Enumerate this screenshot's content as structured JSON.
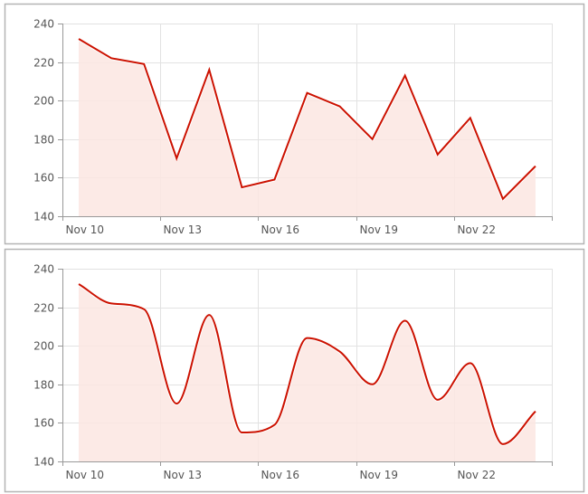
{
  "colors": {
    "line": "#cc1100",
    "fill": "#fbe6e2",
    "grid": "#e2e2e2",
    "axis": "#999999",
    "panel_border": "#b4b4b4"
  },
  "chart_data": [
    {
      "type": "area",
      "interpolation": "linear",
      "x": [
        "Nov 10",
        "Nov 11",
        "Nov 12",
        "Nov 13",
        "Nov 14",
        "Nov 15",
        "Nov 16",
        "Nov 17",
        "Nov 18",
        "Nov 19",
        "Nov 20",
        "Nov 21",
        "Nov 22",
        "Nov 23",
        "Nov 24"
      ],
      "values": [
        232,
        222,
        219,
        170,
        216,
        155,
        159,
        204,
        197,
        180,
        213,
        172,
        191,
        149,
        166
      ],
      "x_tick_labels": [
        "Nov 10",
        "Nov 13",
        "Nov 16",
        "Nov 19",
        "Nov 22"
      ],
      "y_ticks": [
        140,
        160,
        180,
        200,
        220,
        240
      ],
      "ylim": [
        140,
        240
      ],
      "grid": true
    },
    {
      "type": "area",
      "interpolation": "smooth",
      "x": [
        "Nov 10",
        "Nov 11",
        "Nov 12",
        "Nov 13",
        "Nov 14",
        "Nov 15",
        "Nov 16",
        "Nov 17",
        "Nov 18",
        "Nov 19",
        "Nov 20",
        "Nov 21",
        "Nov 22",
        "Nov 23",
        "Nov 24"
      ],
      "values": [
        232,
        222,
        219,
        170,
        216,
        155,
        159,
        204,
        197,
        180,
        213,
        172,
        191,
        149,
        166
      ],
      "x_tick_labels": [
        "Nov 10",
        "Nov 13",
        "Nov 16",
        "Nov 19",
        "Nov 22"
      ],
      "y_ticks": [
        140,
        160,
        180,
        200,
        220,
        240
      ],
      "ylim": [
        140,
        240
      ],
      "grid": true
    }
  ]
}
